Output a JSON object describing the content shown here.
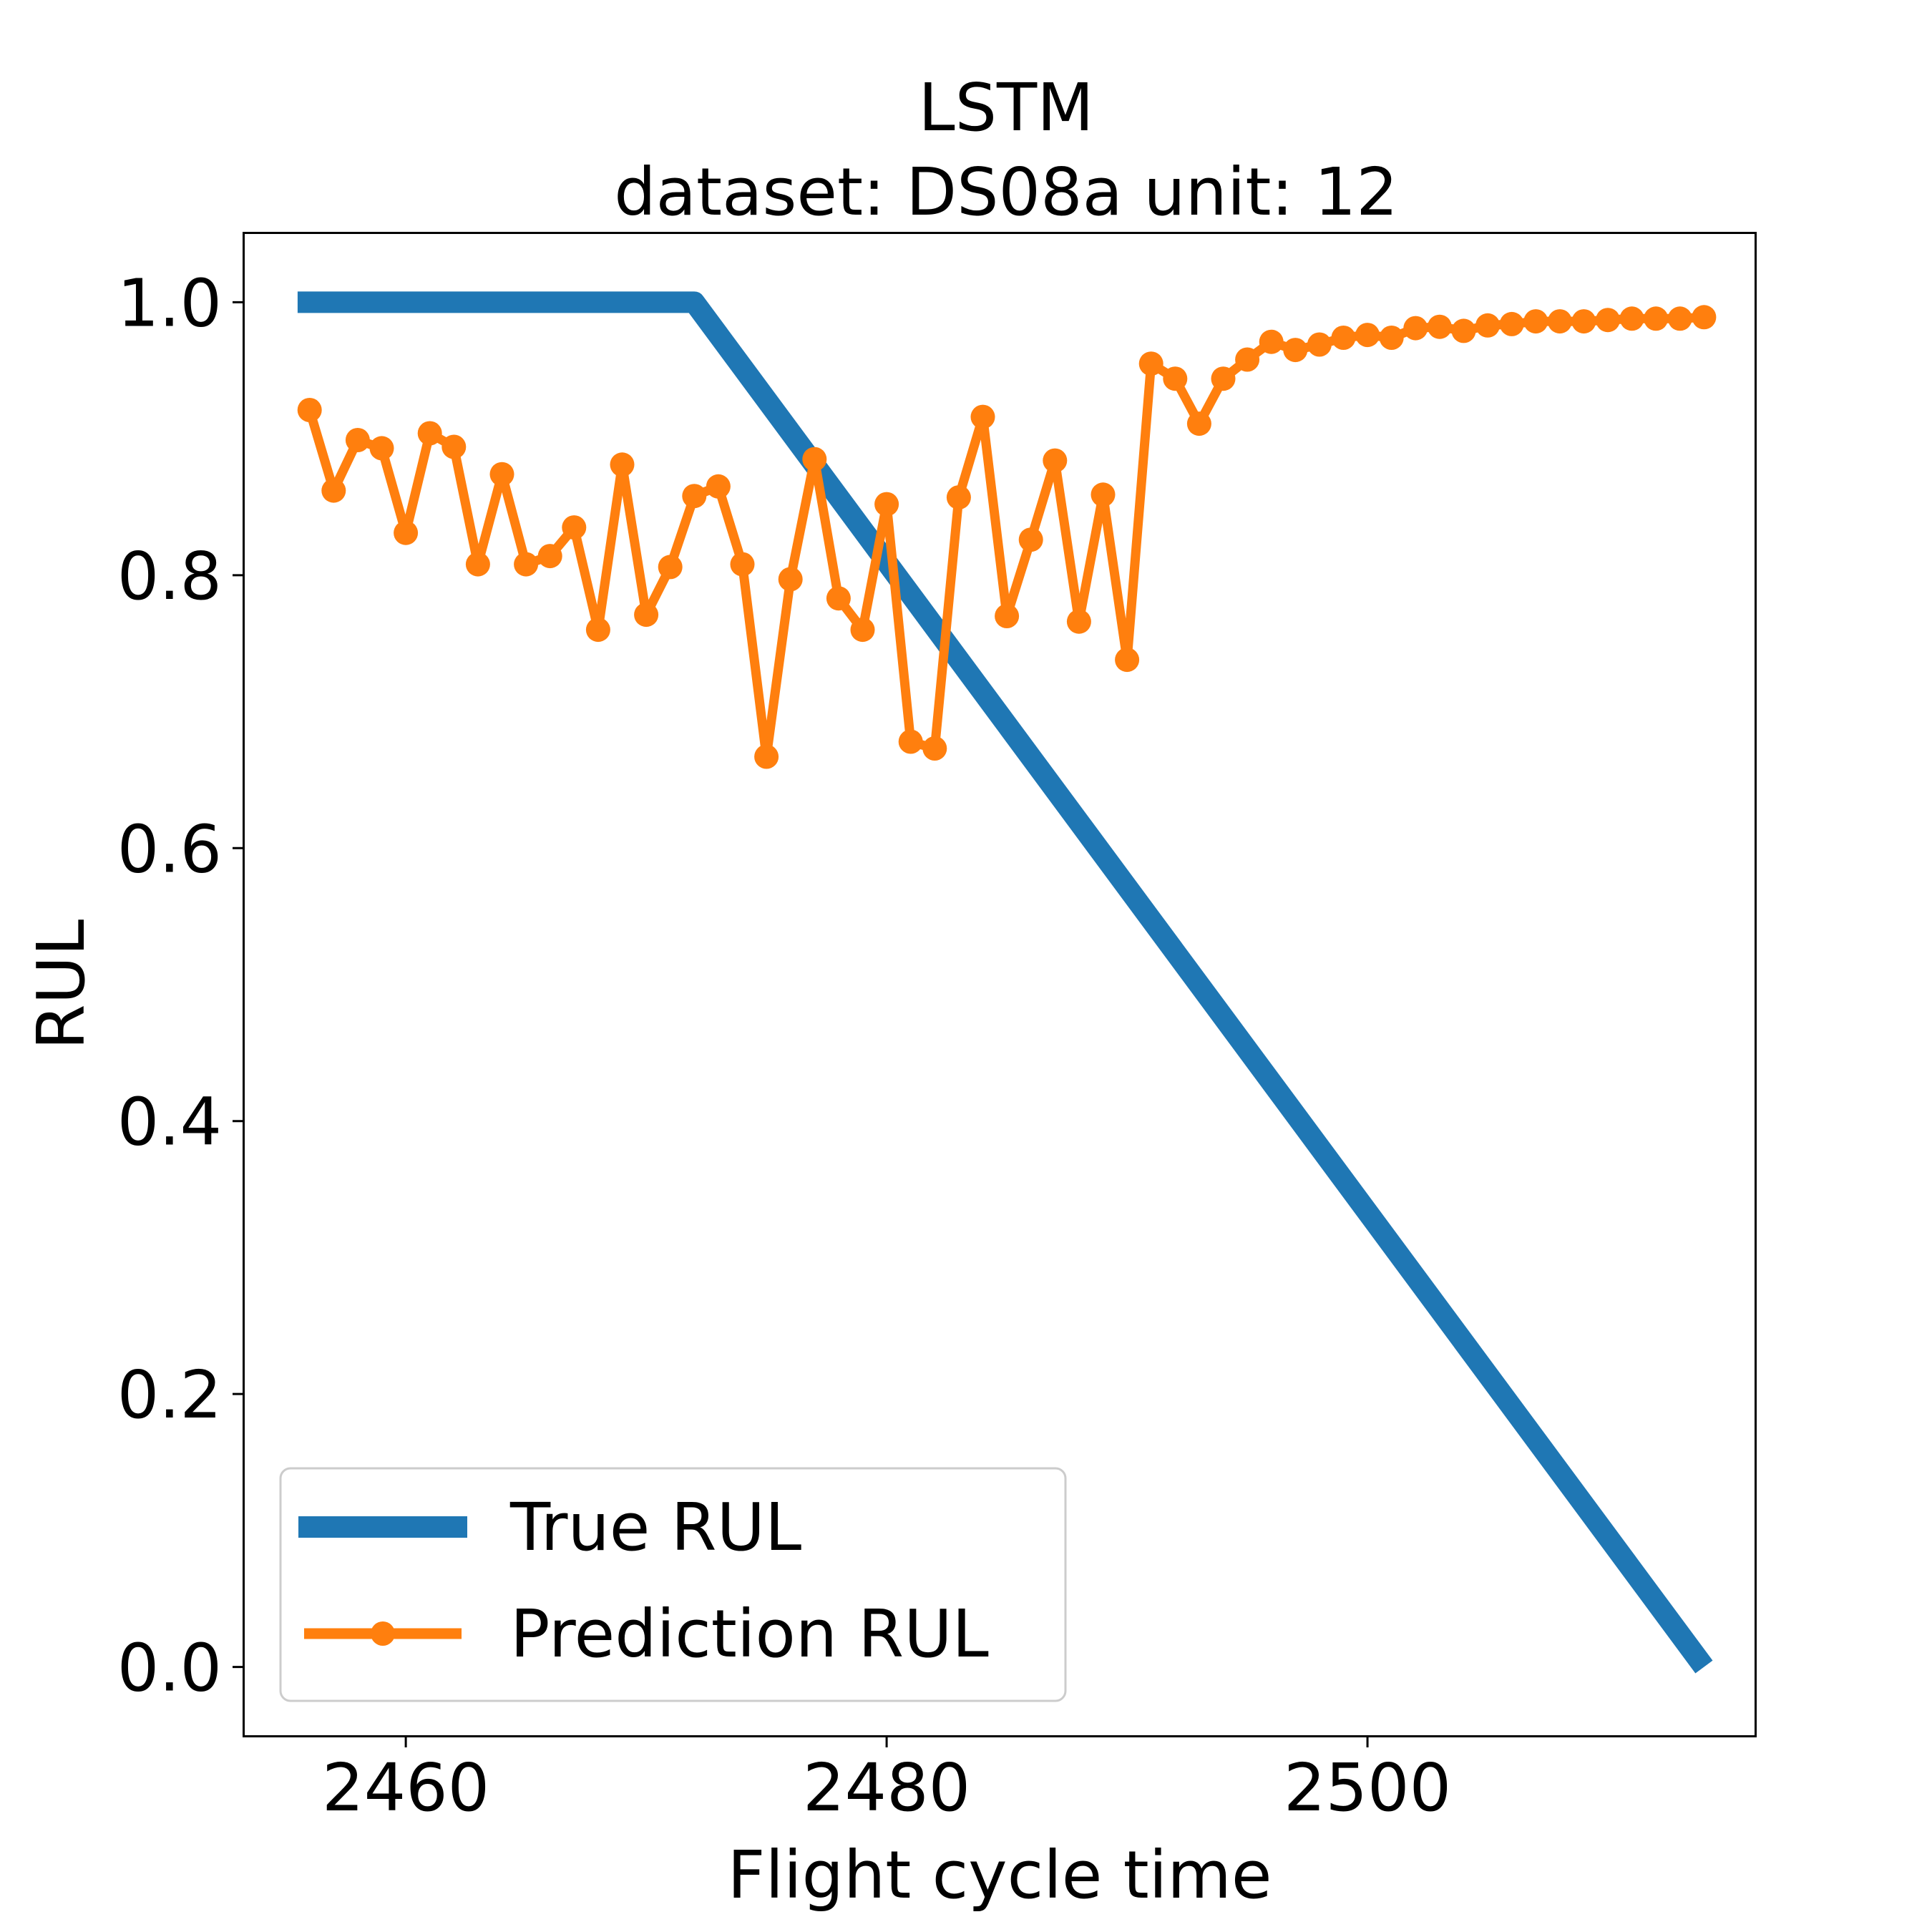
{
  "chart_data": {
    "type": "line",
    "title": "LSTM",
    "subtitle": "dataset: DS08a unit: 12",
    "xlabel": "Flight cycle time",
    "ylabel": "RUL",
    "xlim": [
      2453.3,
      2516.1
    ],
    "ylim": [
      -0.05,
      1.05
    ],
    "x_ticks": [
      2460,
      2480,
      2500
    ],
    "x_tick_labels": [
      "2460",
      "2480",
      "2500"
    ],
    "y_ticks": [
      0.0,
      0.2,
      0.4,
      0.6,
      0.8,
      1.0
    ],
    "y_tick_labels": [
      "0.0",
      "0.2",
      "0.4",
      "0.6",
      "0.8",
      "1.0"
    ],
    "grid": false,
    "legend_position": "lower-left",
    "series": [
      {
        "name": "True RUL",
        "color": "#1f77b4",
        "markers": false,
        "x": [
          2455.5,
          2472,
          2514
        ],
        "y": [
          1.0,
          1.0,
          0.0
        ]
      },
      {
        "name": "Prediction RUL",
        "color": "#ff7f0e",
        "markers": true,
        "x": [
          2456,
          2457,
          2458,
          2459,
          2460,
          2461,
          2462,
          2463,
          2464,
          2465,
          2466,
          2467,
          2468,
          2469,
          2470,
          2471,
          2472,
          2473,
          2474,
          2475,
          2476,
          2477,
          2478,
          2479,
          2480,
          2481,
          2482,
          2483,
          2484,
          2485,
          2486,
          2487,
          2488,
          2489,
          2490,
          2491,
          2492,
          2493,
          2494,
          2495,
          2496,
          2497,
          2498,
          2499,
          2500,
          2501,
          2502,
          2503,
          2504,
          2505,
          2506,
          2507,
          2508,
          2509,
          2510,
          2511,
          2512,
          2513,
          2514
        ],
        "y": [
          0.921,
          0.862,
          0.899,
          0.893,
          0.831,
          0.904,
          0.894,
          0.808,
          0.874,
          0.808,
          0.814,
          0.835,
          0.76,
          0.881,
          0.771,
          0.806,
          0.858,
          0.865,
          0.808,
          0.667,
          0.797,
          0.885,
          0.783,
          0.76,
          0.852,
          0.678,
          0.673,
          0.857,
          0.916,
          0.77,
          0.826,
          0.884,
          0.766,
          0.859,
          0.738,
          0.955,
          0.944,
          0.911,
          0.944,
          0.958,
          0.971,
          0.965,
          0.969,
          0.974,
          0.976,
          0.974,
          0.981,
          0.982,
          0.979,
          0.983,
          0.984,
          0.986,
          0.986,
          0.986,
          0.987,
          0.988,
          0.988,
          0.988,
          0.989
        ]
      }
    ]
  }
}
